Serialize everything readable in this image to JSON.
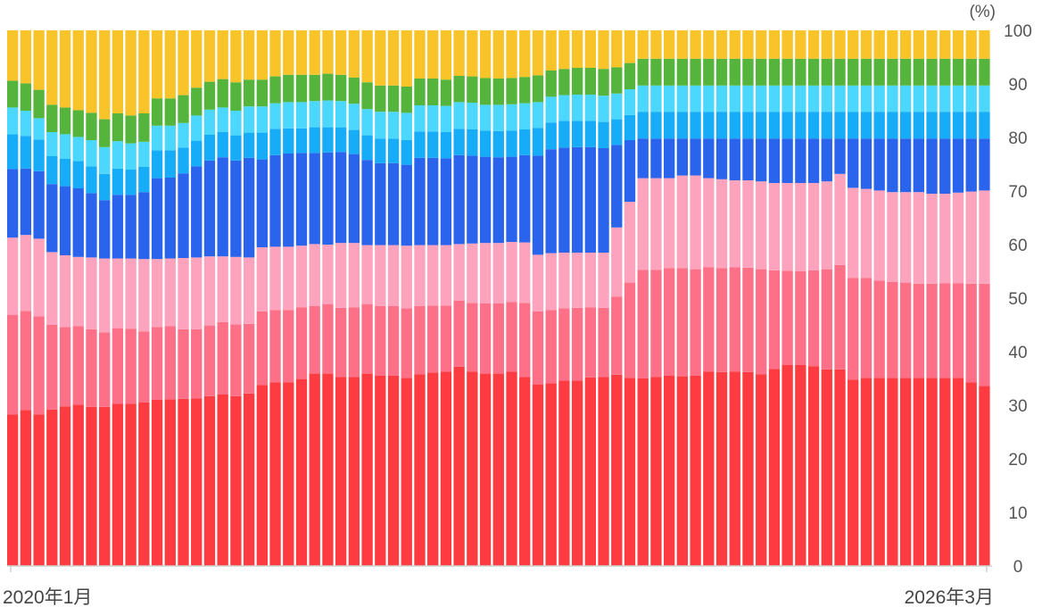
{
  "chart_data": {
    "type": "bar",
    "stacked": true,
    "orientation": "vertical",
    "bar_count": 75,
    "x_range": [
      "2020年1月",
      "2026年3月"
    ],
    "x_tick_labels": [
      "2020年1月",
      "2026年3月"
    ],
    "y_axis_unit": "(%)",
    "ylim": [
      0,
      100
    ],
    "y_ticks": [
      0,
      10,
      20,
      30,
      40,
      50,
      60,
      70,
      80,
      90,
      100
    ],
    "y_axis_position": "right",
    "grid": false,
    "legend": "none",
    "series_colors": [
      "#fd3b40",
      "#fd7087",
      "#fea3be",
      "#2a64ec",
      "#16acf7",
      "#4cd7ff",
      "#55b43b",
      "#f9c32a"
    ],
    "cumulative_boundaries": [
      [
        28.3,
        29.1,
        28.3,
        29.2,
        29.8,
        30.1,
        29.7,
        29.7,
        30.3,
        30.3,
        30.5,
        31.0,
        31.1,
        31.2,
        31.3,
        31.7,
        32.0,
        31.7,
        32.2,
        33.8,
        34.3,
        34.3,
        34.9,
        35.9,
        35.9,
        35.3,
        35.3,
        35.9,
        35.5,
        35.5,
        35.1,
        35.8,
        36.1,
        36.3,
        37.2,
        36.3,
        35.9,
        35.9,
        36.3,
        35.3,
        33.9,
        34.1,
        34.6,
        34.6,
        35.2,
        35.3,
        35.7,
        35.1,
        35.0,
        35.3,
        35.5,
        35.4,
        35.5,
        36.3,
        36.2,
        36.3,
        36.2,
        35.8,
        36.8,
        37.5,
        37.5,
        37.3,
        36.7,
        36.7,
        34.8,
        35.1,
        35.1,
        35.1,
        35.1,
        35.1,
        35.1,
        35.1,
        35.1,
        34.3,
        33.6
      ],
      [
        46.9,
        47.6,
        46.6,
        45.0,
        44.6,
        44.8,
        44.2,
        43.6,
        44.4,
        44.3,
        43.8,
        44.6,
        44.8,
        44.2,
        44.2,
        44.9,
        45.5,
        45.1,
        45.2,
        47.5,
        47.8,
        47.8,
        48.3,
        48.5,
        48.9,
        48.2,
        48.3,
        48.9,
        48.5,
        48.5,
        48.1,
        48.5,
        48.6,
        48.6,
        49.5,
        49.1,
        49.0,
        49.0,
        49.3,
        49.1,
        47.5,
        47.8,
        48.1,
        48.2,
        48.3,
        48.2,
        50.3,
        52.9,
        55.3,
        55.3,
        55.6,
        55.6,
        55.4,
        55.8,
        55.6,
        55.8,
        55.7,
        55.4,
        55.2,
        55.1,
        55.0,
        55.2,
        55.4,
        56.2,
        53.8,
        53.8,
        53.3,
        53.0,
        52.9,
        52.7,
        52.7,
        52.8,
        52.8,
        52.7,
        52.7
      ],
      [
        61.3,
        61.8,
        61.1,
        58.6,
        58.0,
        57.7,
        57.6,
        57.4,
        57.4,
        57.4,
        57.3,
        57.3,
        57.4,
        57.5,
        57.6,
        57.8,
        57.8,
        57.7,
        57.6,
        59.5,
        59.6,
        59.6,
        59.8,
        60.1,
        60.0,
        60.3,
        60.3,
        59.9,
        59.9,
        59.9,
        59.8,
        59.9,
        59.9,
        59.9,
        60.1,
        60.2,
        60.3,
        60.3,
        60.5,
        60.4,
        58.1,
        58.4,
        58.5,
        58.5,
        58.5,
        58.5,
        63.2,
        68.0,
        72.4,
        72.4,
        72.4,
        72.9,
        72.9,
        72.4,
        72.2,
        72.0,
        72.0,
        71.8,
        71.5,
        71.5,
        71.5,
        71.5,
        71.8,
        73.2,
        70.6,
        70.4,
        70.1,
        69.8,
        69.8,
        69.8,
        69.5,
        69.5,
        69.7,
        69.9,
        70.1
      ],
      [
        74.1,
        74.2,
        73.7,
        71.3,
        70.9,
        70.5,
        69.6,
        68.3,
        69.3,
        69.3,
        69.8,
        72.4,
        72.5,
        73.3,
        74.6,
        75.7,
        76.3,
        75.7,
        76.2,
        75.9,
        76.7,
        77.0,
        77.1,
        77.1,
        77.2,
        77.3,
        76.9,
        75.8,
        75.2,
        75.2,
        74.9,
        76.2,
        76.2,
        76.1,
        76.7,
        76.6,
        76.4,
        76.3,
        76.4,
        76.7,
        76.6,
        77.8,
        78.1,
        78.2,
        78.2,
        78.0,
        78.6,
        79.5,
        79.8,
        79.8,
        79.8,
        79.8,
        79.8,
        79.8,
        79.8,
        79.8,
        79.8,
        79.8,
        79.8,
        79.8,
        79.8,
        79.8,
        79.8,
        79.8,
        79.8,
        79.8,
        79.8,
        79.8,
        79.8,
        79.8,
        79.8,
        79.8,
        79.8,
        79.8,
        79.8
      ],
      [
        80.6,
        80.3,
        79.6,
        76.5,
        76.0,
        75.6,
        74.6,
        73.2,
        74.2,
        74.0,
        74.5,
        77.6,
        77.6,
        78.1,
        79.4,
        80.5,
        81.0,
        80.4,
        80.9,
        80.9,
        81.6,
        81.7,
        81.7,
        81.9,
        81.9,
        81.9,
        81.4,
        80.4,
        79.8,
        79.8,
        79.5,
        81.1,
        81.1,
        81.0,
        81.6,
        81.5,
        81.3,
        81.2,
        81.3,
        81.5,
        81.8,
        82.8,
        83.1,
        83.1,
        83.1,
        82.9,
        83.4,
        84.2,
        84.8,
        84.8,
        84.8,
        84.8,
        84.8,
        84.8,
        84.8,
        84.8,
        84.8,
        84.8,
        84.8,
        84.8,
        84.8,
        84.8,
        84.8,
        84.8,
        84.8,
        84.8,
        84.8,
        84.8,
        84.8,
        84.8,
        84.8,
        84.8,
        84.8,
        84.8,
        84.8
      ],
      [
        85.6,
        85.0,
        83.6,
        81.0,
        80.6,
        80.1,
        79.5,
        78.2,
        79.3,
        78.9,
        79.2,
        82.2,
        82.2,
        82.7,
        84.1,
        85.2,
        85.6,
        85.0,
        85.8,
        85.8,
        86.4,
        86.6,
        86.6,
        86.8,
        86.9,
        86.8,
        86.3,
        85.3,
        84.8,
        84.8,
        84.6,
        86.0,
        86.0,
        85.9,
        86.6,
        86.5,
        86.1,
        86.1,
        86.2,
        86.4,
        86.6,
        87.6,
        87.9,
        88.0,
        88.0,
        87.8,
        88.2,
        89.0,
        89.7,
        89.7,
        89.7,
        89.7,
        89.7,
        89.7,
        89.7,
        89.7,
        89.7,
        89.7,
        89.7,
        89.7,
        89.7,
        89.7,
        89.7,
        89.7,
        89.7,
        89.7,
        89.7,
        89.7,
        89.7,
        89.7,
        89.7,
        89.7,
        89.7,
        89.7,
        89.7
      ],
      [
        90.6,
        90.1,
        88.9,
        86.1,
        85.6,
        85.1,
        84.6,
        83.4,
        84.5,
        84.1,
        84.5,
        87.3,
        87.3,
        87.9,
        89.3,
        90.4,
        90.9,
        90.3,
        90.8,
        90.8,
        91.4,
        91.7,
        91.7,
        91.7,
        91.9,
        91.7,
        91.2,
        90.3,
        89.7,
        89.7,
        89.5,
        91.0,
        91.0,
        90.8,
        91.5,
        91.4,
        91.1,
        91.0,
        91.1,
        91.3,
        91.6,
        92.5,
        92.8,
        93.0,
        93.0,
        92.8,
        93.1,
        93.9,
        94.7,
        94.7,
        94.7,
        94.7,
        94.7,
        94.7,
        94.7,
        94.7,
        94.7,
        94.7,
        94.7,
        94.7,
        94.7,
        94.7,
        94.7,
        94.7,
        94.7,
        94.7,
        94.7,
        94.7,
        94.7,
        94.7,
        94.7,
        94.7,
        94.7,
        94.7,
        94.7
      ],
      [
        100,
        100,
        100,
        100,
        100,
        100,
        100,
        100,
        100,
        100,
        100,
        100,
        100,
        100,
        100,
        100,
        100,
        100,
        100,
        100,
        100,
        100,
        100,
        100,
        100,
        100,
        100,
        100,
        100,
        100,
        100,
        100,
        100,
        100,
        100,
        100,
        100,
        100,
        100,
        100,
        100,
        100,
        100,
        100,
        100,
        100,
        100,
        100,
        100,
        100,
        100,
        100,
        100,
        100,
        100,
        100,
        100,
        100,
        100,
        100,
        100,
        100,
        100,
        100,
        100,
        100,
        100,
        100,
        100,
        100,
        100,
        100,
        100,
        100,
        100
      ]
    ]
  }
}
